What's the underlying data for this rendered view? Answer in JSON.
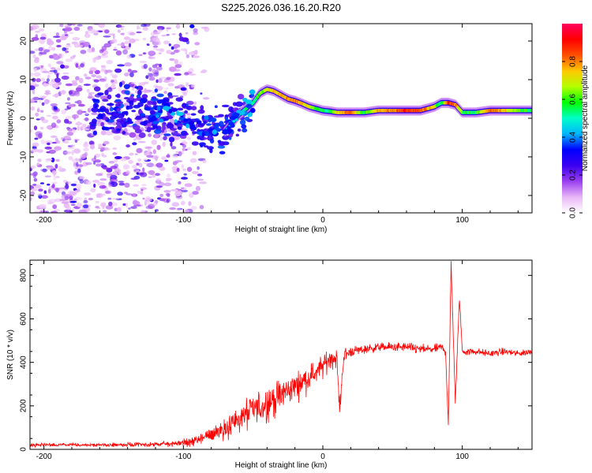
{
  "title": "S225.2026.036.16.20.R20",
  "chart_data": [
    {
      "type": "heatmap",
      "xlabel": "Height of straight line (km)",
      "ylabel": "Frequency (Hz)",
      "xlim": [
        -210,
        150
      ],
      "ylim": [
        -24.5,
        24.5
      ],
      "x_ticks": [
        -200,
        -100,
        0,
        100
      ],
      "y_ticks": [
        -20,
        -10,
        0,
        10,
        20
      ],
      "colorbar": {
        "label": "Normalized spectral amplitude",
        "range": [
          0,
          1
        ],
        "ticks": [
          "0.0",
          "0.2",
          "0.4",
          "0.6",
          "0.8"
        ],
        "tick_values": [
          0.0,
          0.2,
          0.4,
          0.6,
          0.8
        ],
        "colors": [
          "#ffffff",
          "#e9b6f7",
          "#9a3ff0",
          "#3b00f0",
          "#0000ff",
          "#00b4ff",
          "#00ffc8",
          "#00ff00",
          "#b4ff00",
          "#ffc800",
          "#ff5000",
          "#ff0000",
          "#ff0060"
        ]
      },
      "ridge": {
        "x": [
          -120,
          -100,
          -90,
          -80,
          -70,
          -60,
          -50,
          -45,
          -40,
          -35,
          -30,
          -25,
          -20,
          -15,
          -10,
          -5,
          0,
          5,
          10,
          20,
          30,
          40,
          50,
          60,
          70,
          80,
          85,
          90,
          95,
          100,
          110,
          120,
          130,
          140,
          150
        ],
        "y": [
          2.0,
          0.5,
          -2.0,
          -3.0,
          -3.5,
          1.0,
          4.0,
          6.5,
          7.5,
          7.0,
          6.0,
          5.0,
          4.5,
          3.8,
          3.0,
          2.5,
          2.0,
          1.8,
          1.5,
          1.5,
          1.5,
          2.0,
          2.0,
          2.0,
          2.0,
          3.0,
          4.0,
          4.0,
          3.5,
          1.5,
          1.5,
          2.0,
          2.0,
          2.0,
          2.0
        ],
        "amplitude": [
          0.2,
          0.25,
          0.3,
          0.35,
          0.4,
          0.5,
          0.55,
          0.6,
          0.7,
          0.75,
          0.75,
          0.8,
          0.8,
          0.75,
          0.7,
          0.6,
          0.55,
          0.5,
          0.7,
          0.85,
          0.55,
          0.75,
          0.8,
          0.9,
          0.85,
          0.7,
          0.5,
          0.9,
          0.8,
          0.6,
          0.55,
          0.85,
          0.75,
          0.6,
          0.55
        ]
      }
    },
    {
      "type": "line",
      "xlabel": "Height of straight line (km)",
      "ylabel": "SNR (10 * v/v)",
      "xlim": [
        -210,
        150
      ],
      "ylim": [
        0,
        870
      ],
      "x_ticks": [
        -200,
        -100,
        0,
        100
      ],
      "y_ticks": [
        0,
        200,
        400,
        600,
        800
      ],
      "series": [
        {
          "name": "SNR",
          "color": "#ff0000",
          "x": [
            -210,
            -180,
            -150,
            -120,
            -100,
            -90,
            -80,
            -70,
            -60,
            -50,
            -40,
            -30,
            -20,
            -10,
            0,
            5,
            10,
            12,
            15,
            20,
            30,
            40,
            50,
            60,
            70,
            80,
            85,
            88,
            90,
            92,
            95,
            98,
            100,
            110,
            120,
            130,
            140,
            150
          ],
          "y": [
            20,
            20,
            20,
            22,
            30,
            40,
            70,
            100,
            140,
            180,
            210,
            250,
            290,
            330,
            380,
            420,
            420,
            180,
            430,
            450,
            460,
            470,
            470,
            470,
            460,
            460,
            470,
            450,
            120,
            850,
            220,
            700,
            450,
            450,
            440,
            450,
            440,
            450
          ],
          "noise_amplitude": [
            8,
            8,
            8,
            10,
            15,
            25,
            40,
            55,
            70,
            80,
            80,
            70,
            60,
            55,
            50,
            45,
            40,
            40,
            35,
            25,
            20,
            20,
            20,
            20,
            20,
            20,
            20,
            20,
            20,
            20,
            20,
            20,
            20,
            15,
            15,
            15,
            15,
            15
          ]
        }
      ]
    }
  ]
}
